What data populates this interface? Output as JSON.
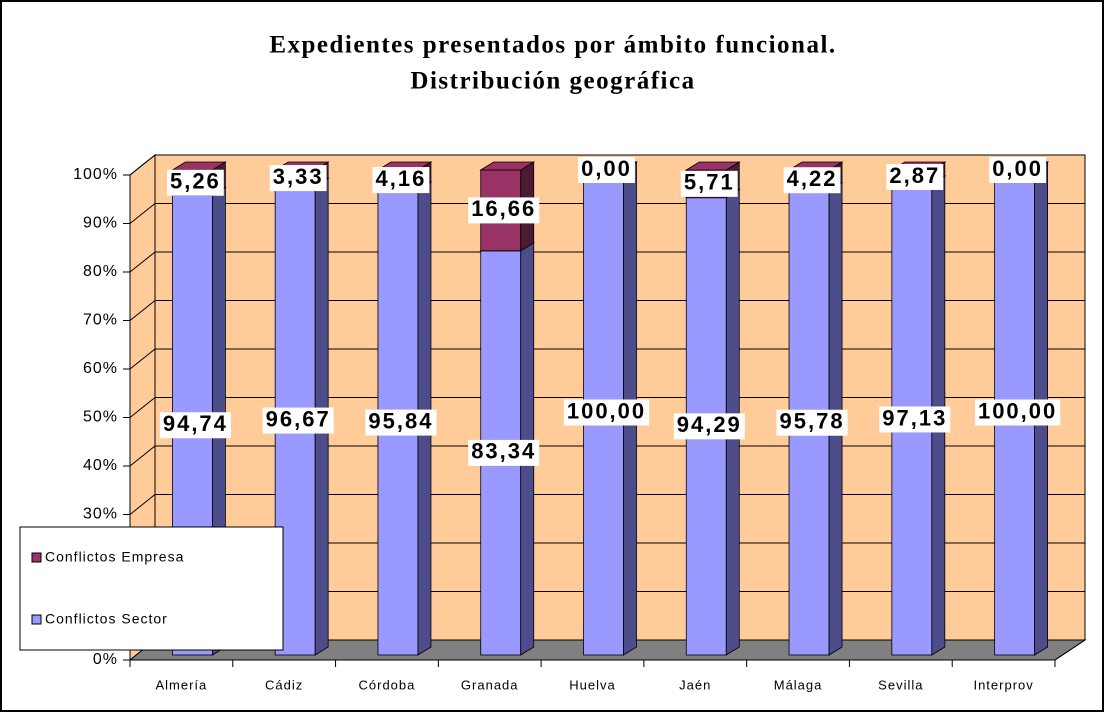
{
  "chart_data": {
    "type": "bar",
    "stacked": true,
    "title": [
      "Expedientes presentados por ámbito funcional.",
      "Distribución geográfica"
    ],
    "categories": [
      "Almería",
      "Cádiz",
      "Córdoba",
      "Granada",
      "Huelva",
      "Jaén",
      "Málaga",
      "Sevilla",
      "Interprov"
    ],
    "series": [
      {
        "name": "Conflictos Sector",
        "color": "#9999ff",
        "side_color": "#4d4d8c",
        "values": [
          94.74,
          96.67,
          95.84,
          83.34,
          100.0,
          94.29,
          95.78,
          97.13,
          100.0
        ],
        "value_labels": [
          "94,74",
          "96,67",
          "95,84",
          "83,34",
          "100,00",
          "94,29",
          "95,78",
          "97,13",
          "100,00"
        ]
      },
      {
        "name": "Conflictos Empresa",
        "color": "#993366",
        "side_color": "#4d1a33",
        "values": [
          5.26,
          3.33,
          4.16,
          16.66,
          0.0,
          5.71,
          4.22,
          2.87,
          0.0
        ],
        "value_labels": [
          "5,26",
          "3,33",
          "4,16",
          "16,66",
          "0,00",
          "5,71",
          "4,22",
          "2,87",
          "0,00"
        ]
      }
    ],
    "ylim": [
      0,
      100
    ],
    "yticks": [
      {
        "value": 0,
        "label": "0%"
      },
      {
        "value": 10,
        "label": "10%"
      },
      {
        "value": 20,
        "label": "20%"
      },
      {
        "value": 30,
        "label": "30%"
      },
      {
        "value": 40,
        "label": "40%"
      },
      {
        "value": 50,
        "label": "50%"
      },
      {
        "value": 60,
        "label": "60%"
      },
      {
        "value": 70,
        "label": "70%"
      },
      {
        "value": 80,
        "label": "80%"
      },
      {
        "value": 90,
        "label": "90%"
      },
      {
        "value": 100,
        "label": "100%"
      }
    ],
    "grid": true,
    "wall_color": "#ffcc99",
    "floor_color": "#808080",
    "legend": "lower left"
  }
}
